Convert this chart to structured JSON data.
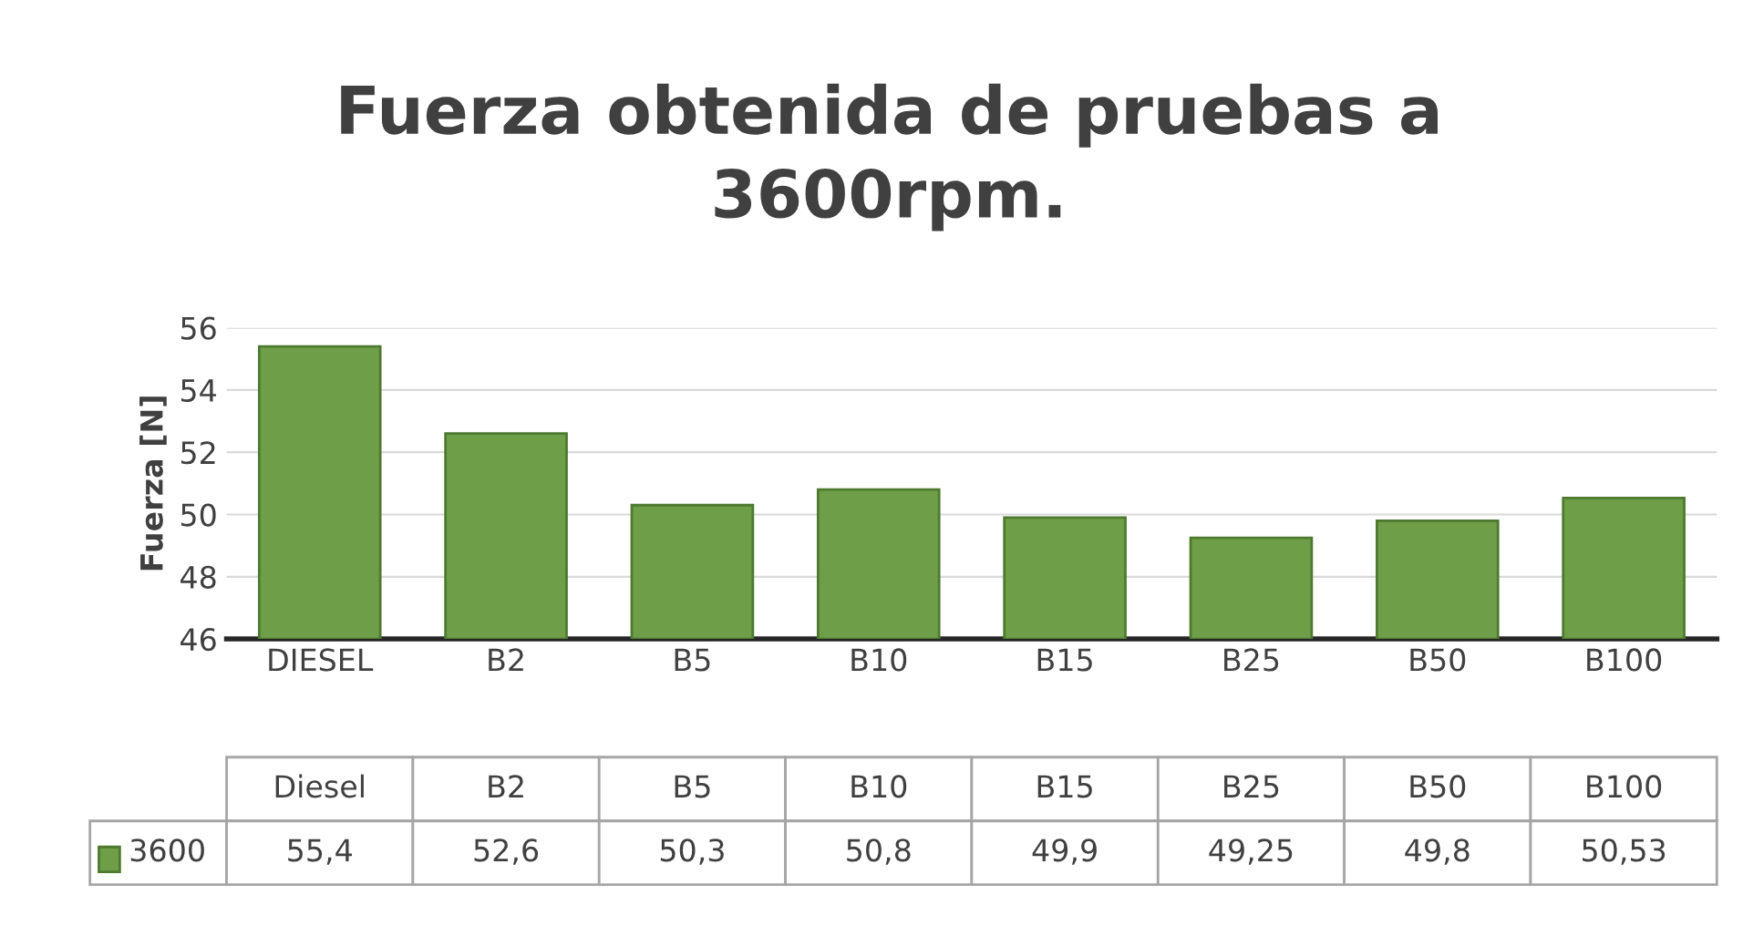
{
  "chart_data": {
    "type": "bar",
    "title": "Fuerza obtenida de pruebas a\n3600rpm.",
    "ylabel": "Fuerza [N]",
    "categories": [
      "DIESEL",
      "B2",
      "B5",
      "B10",
      "B15",
      "B25",
      "B50",
      "B100"
    ],
    "annotations": [
      "Diesel",
      "B2",
      "B5",
      "B10",
      "B15",
      "B25",
      "B50",
      "B100"
    ],
    "series": [
      {
        "name": "3600",
        "color": "#6f9e48",
        "values": [
          55.4,
          52.6,
          50.3,
          50.8,
          49.9,
          49.25,
          49.8,
          50.53
        ],
        "value_labels": [
          "55,4",
          "52,6",
          "50,3",
          "50,8",
          "49,9",
          "49,25",
          "49,8",
          "50,53"
        ]
      }
    ],
    "ylim": [
      46,
      56
    ],
    "yticks": [
      46,
      48,
      50,
      52,
      54,
      56
    ],
    "grid": "y",
    "legend": "bottom"
  }
}
